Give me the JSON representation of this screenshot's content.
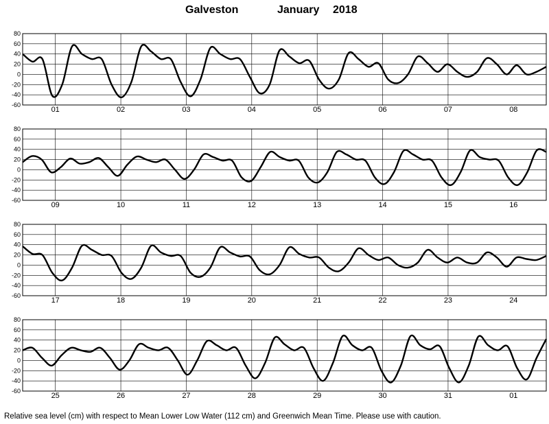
{
  "title": {
    "station": "Galveston",
    "month": "January",
    "year": "2018"
  },
  "footer": "Relative sea level (cm) with respect to Mean Lower Low Water (112 cm) and Greenwich Mean Time. Please use with caution.",
  "chart_data": [
    {
      "type": "line",
      "days": [
        "01",
        "02",
        "03",
        "04",
        "05",
        "06",
        "07",
        "08"
      ],
      "yticks": [
        80,
        60,
        40,
        20,
        0,
        -20,
        -40,
        -60
      ],
      "ylim": [
        -60,
        80
      ],
      "grid": true,
      "series": [
        {
          "values": [
            40,
            25,
            30,
            -42,
            -20,
            55,
            40,
            30,
            30,
            -20,
            -45,
            -15,
            55,
            45,
            30,
            30,
            -15,
            -43,
            -10,
            52,
            40,
            30,
            30,
            -5,
            -37,
            -20,
            47,
            35,
            22,
            27,
            -10,
            -28,
            -10,
            42,
            30,
            15,
            22,
            -10,
            -17,
            0,
            35,
            22,
            5,
            20,
            5,
            -5,
            5,
            32,
            20,
            0,
            18,
            0,
            5,
            15
          ]
        }
      ]
    },
    {
      "type": "line",
      "days": [
        "09",
        "10",
        "11",
        "12",
        "13",
        "14",
        "15",
        "16"
      ],
      "yticks": [
        80,
        60,
        40,
        20,
        0,
        -20,
        -40,
        -60
      ],
      "ylim": [
        -60,
        80
      ],
      "grid": true,
      "series": [
        {
          "values": [
            15,
            27,
            20,
            -5,
            5,
            22,
            12,
            15,
            23,
            5,
            -12,
            10,
            26,
            20,
            15,
            20,
            0,
            -18,
            0,
            30,
            25,
            18,
            18,
            -15,
            -22,
            5,
            35,
            25,
            18,
            18,
            -15,
            -25,
            -5,
            35,
            30,
            20,
            18,
            -15,
            -28,
            -5,
            37,
            30,
            20,
            18,
            -15,
            -30,
            -5,
            38,
            25,
            20,
            18,
            -15,
            -30,
            -5,
            38,
            35
          ]
        }
      ]
    },
    {
      "type": "line",
      "days": [
        "17",
        "18",
        "19",
        "20",
        "21",
        "22",
        "23",
        "24"
      ],
      "yticks": [
        80,
        60,
        40,
        20,
        0,
        -20,
        -40,
        -60
      ],
      "ylim": [
        -60,
        80
      ],
      "grid": true,
      "series": [
        {
          "values": [
            37,
            22,
            20,
            -15,
            -30,
            -5,
            38,
            30,
            20,
            18,
            -15,
            -27,
            -5,
            38,
            25,
            18,
            18,
            -15,
            -23,
            -5,
            35,
            25,
            17,
            17,
            -10,
            -18,
            0,
            35,
            22,
            15,
            15,
            -5,
            -12,
            5,
            33,
            20,
            10,
            15,
            0,
            -5,
            5,
            30,
            15,
            5,
            15,
            5,
            5,
            25,
            15,
            -3,
            15,
            12,
            10,
            18
          ]
        }
      ]
    },
    {
      "type": "line",
      "days": [
        "25",
        "26",
        "27",
        "28",
        "29",
        "30",
        "31",
        "01"
      ],
      "yticks": [
        80,
        60,
        40,
        20,
        0,
        -20,
        -40,
        -60
      ],
      "ylim": [
        -60,
        80
      ],
      "grid": true,
      "series": [
        {
          "values": [
            20,
            25,
            5,
            -10,
            10,
            25,
            20,
            17,
            25,
            5,
            -18,
            0,
            32,
            25,
            20,
            25,
            0,
            -28,
            0,
            38,
            30,
            20,
            25,
            -10,
            -35,
            -5,
            45,
            32,
            20,
            25,
            -15,
            -40,
            -5,
            48,
            30,
            20,
            25,
            -20,
            -43,
            -10,
            48,
            30,
            22,
            28,
            -15,
            -43,
            -10,
            47,
            30,
            20,
            28,
            -15,
            -37,
            5,
            42
          ]
        }
      ]
    }
  ]
}
